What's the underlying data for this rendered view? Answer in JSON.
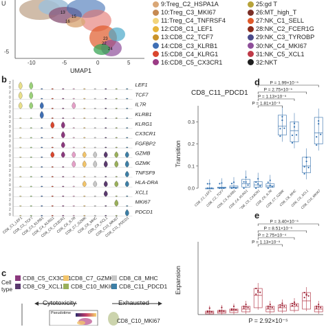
{
  "umap": {
    "xlabel": "UMAP1",
    "ylabel_fragment": "U",
    "xticks": [
      "-10",
      "-5",
      "0",
      "5"
    ],
    "yticks": [
      "-5"
    ],
    "cluster_numbers": [
      "13",
      "15",
      "16",
      "23",
      "24",
      "22"
    ]
  },
  "cluster_legend": {
    "left": [
      {
        "label": "9:Treg_C2_HSPA1A",
        "color": "#d9a777"
      },
      {
        "label": "10:Treg_C3_MKI67",
        "color": "#c68a52"
      },
      {
        "label": "11:Treg_C4_TNFRSF4",
        "color": "#f2d47c"
      },
      {
        "label": "12:CD8_C1_LEF1",
        "color": "#e6b43a"
      },
      {
        "label": "13:CD8_C2_TCF7",
        "color": "#c9932a"
      },
      {
        "label": "14:CD8_C3_KLRB1",
        "color": "#3f6fb4"
      },
      {
        "label": "15:CD8_C4_KLRG1",
        "color": "#d9462e"
      },
      {
        "label": "16:CD8_C5_CX3CR1",
        "color": "#9b3b85"
      }
    ],
    "right": [
      {
        "label": "25:gd T",
        "color": "#b7a33a"
      },
      {
        "label": "26:MT_high_T",
        "color": "#7a2e25"
      },
      {
        "label": "27:NK_C1_SELL",
        "color": "#e05a2a"
      },
      {
        "label": "28:NK_C2_FCER1G",
        "color": "#8c2d1d"
      },
      {
        "label": "29:NK_C3_TYROBP",
        "color": "#4a4a8a"
      },
      {
        "label": "30:NK_C4_MKI67",
        "color": "#8e4f9a"
      },
      {
        "label": "31:NK_C5_XCL1",
        "color": "#bf3a48"
      },
      {
        "label": "32:NKT",
        "color": "#1e1e1e"
      }
    ]
  },
  "panel_b": {
    "letter": "b",
    "genes": [
      "LEF1",
      "TCF7",
      "IL7R",
      "KLRB1",
      "KLRG1",
      "CX3CR1",
      "FGFBP2",
      "GZMB",
      "GZMK",
      "TNFSF9",
      "HLA-DRA",
      "XCL1",
      "MKI67",
      "PDCD1"
    ],
    "categories": [
      "CD8_C1_LEF1",
      "CD8_C2_TCF7",
      "CD8_C3_KLRB1",
      "CD8_C4_KLRG1",
      "CD8_C5_CX3CR1",
      "CD8_C6_IL7R",
      "CD8_C7_GZMK",
      "CD8_C8_MHC",
      "CD8_C9_XCL1",
      "CD8_C10_MKI67",
      "CD8_C11_PDCD1"
    ]
  },
  "panel_d": {
    "letter": "d",
    "title": "CD8_C11_PDCD1",
    "ylabel": "Transition",
    "yticks": [
      "0.0",
      "0.1",
      "0.2",
      "0.3"
    ],
    "pvalues": [
      "P = 1.99×10⁻⁵",
      "P = 2.75×10⁻⁵",
      "P = 1.13×10⁻⁵",
      "P = 1.81×10⁻³"
    ],
    "categories": [
      "CD8_C1_LEF1",
      "CD8_C2_TCF7",
      "CD8_C3_KLRB1",
      "CD8_C4_KLRG1",
      "CD8_C5_CX3CR1",
      "CD8_C6_IL7R",
      "CD8_C7_GZMK",
      "CD8_C8_MHC",
      "CD8_C9_XCL1",
      "CD8_C10_MKI67"
    ]
  },
  "panel_e": {
    "letter": "e",
    "ylabel": "Expansion",
    "pvalues": [
      "P = 3.40×10⁻⁵",
      "P = 8.51×10⁻⁵",
      "P = 2.75×10⁻⁴",
      "P = 1.13×10⁻⁵"
    ],
    "bottom_pvalue": "P = 2.92×10⁻⁵"
  },
  "panel_c": {
    "letter": "c",
    "celltype_label_1": "Cell",
    "celltype_label_2": "type",
    "celltypes": [
      {
        "label": "CD8_C5_CX3CR1",
        "color": "#8b3a7e"
      },
      {
        "label": "CD8_C7_GZMK",
        "color": "#f2c46a"
      },
      {
        "label": "CD8_C8_MHC",
        "color": "#c7c7c7"
      },
      {
        "label": "CD8_C9_XCL1",
        "color": "#5a3a6e"
      },
      {
        "label": "CD8_C10_MKI67",
        "color": "#9ab05a"
      },
      {
        "label": "CD8_C11_PDCD1",
        "color": "#3d7fa6"
      }
    ],
    "cytotoxicity": "Cytotoxicity",
    "exhausted": "Exhausted",
    "pseudotime": "Pseudotime",
    "bottom_label": "CD8_C10_MKI67"
  }
}
